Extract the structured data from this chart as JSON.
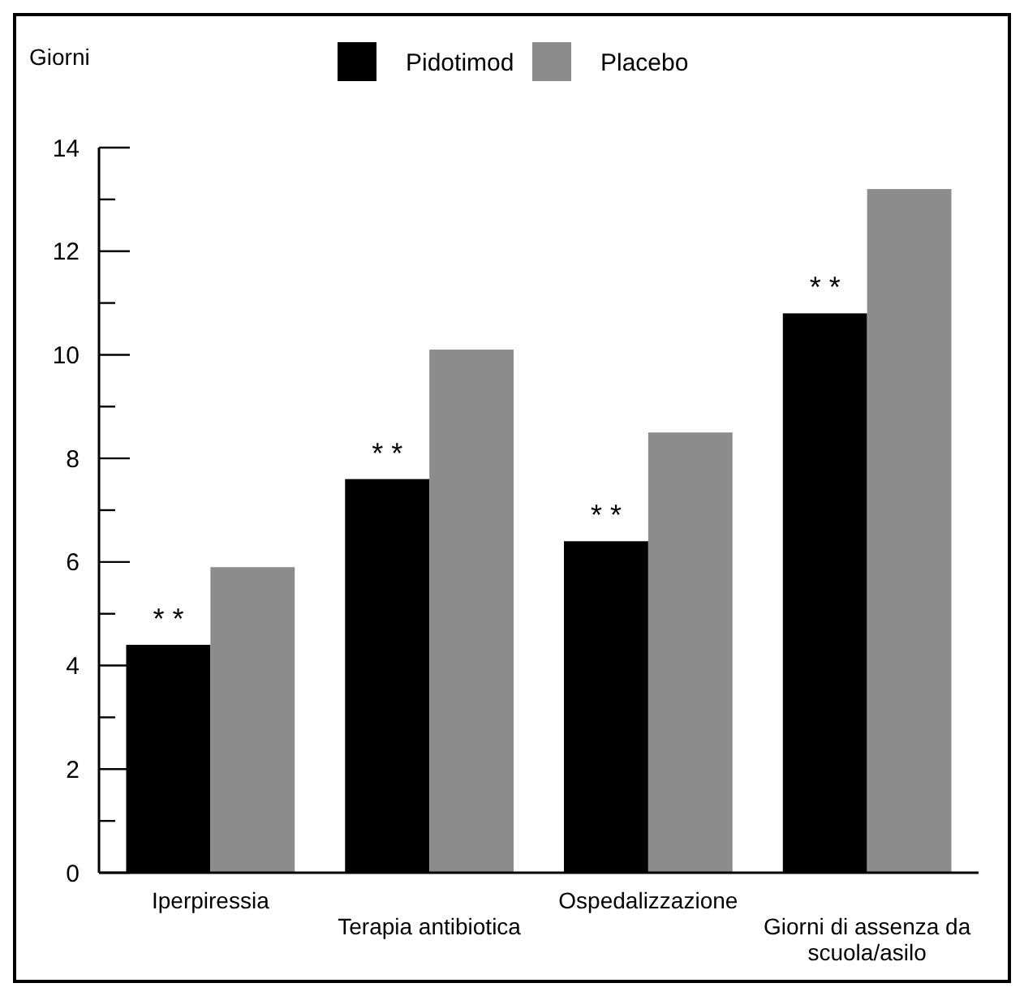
{
  "chart_data": {
    "type": "bar",
    "ylabel": "Giorni",
    "categories": [
      "Iperpiressia",
      "Terapia antibiotica",
      "Ospedalizzazione",
      "Giorni di assenza da scuola/asilo"
    ],
    "series": [
      {
        "name": "Pidotimod",
        "color": "#000000",
        "values": [
          4.4,
          7.6,
          6.4,
          10.8
        ]
      },
      {
        "name": "Placebo",
        "color": "#8c8c8c",
        "values": [
          5.9,
          10.1,
          8.5,
          13.2
        ]
      }
    ],
    "ylim": [
      0,
      14
    ],
    "yticks": [
      0,
      {
        "value": 1,
        "label": null
      },
      2,
      {
        "value": 3,
        "label": null
      },
      4,
      {
        "value": 5,
        "label": null
      },
      6,
      {
        "value": 7,
        "label": null
      },
      8,
      {
        "value": 9,
        "label": null
      },
      10,
      {
        "value": 11,
        "label": null
      },
      12,
      {
        "value": 13,
        "label": null
      },
      14
    ],
    "annotations": [
      {
        "text": "* *",
        "x": "Iperpiressia",
        "y": 4.4
      },
      {
        "text": "* *",
        "x": "Terapia antibiotica",
        "y": 7.6
      },
      {
        "text": "* *",
        "x": "Ospedalizzazione",
        "y": 6.4
      },
      {
        "text": "* *",
        "x": "Giorni di assenza da scuola/asilo",
        "y": 10.8
      }
    ],
    "legend": "top",
    "grid": false
  }
}
